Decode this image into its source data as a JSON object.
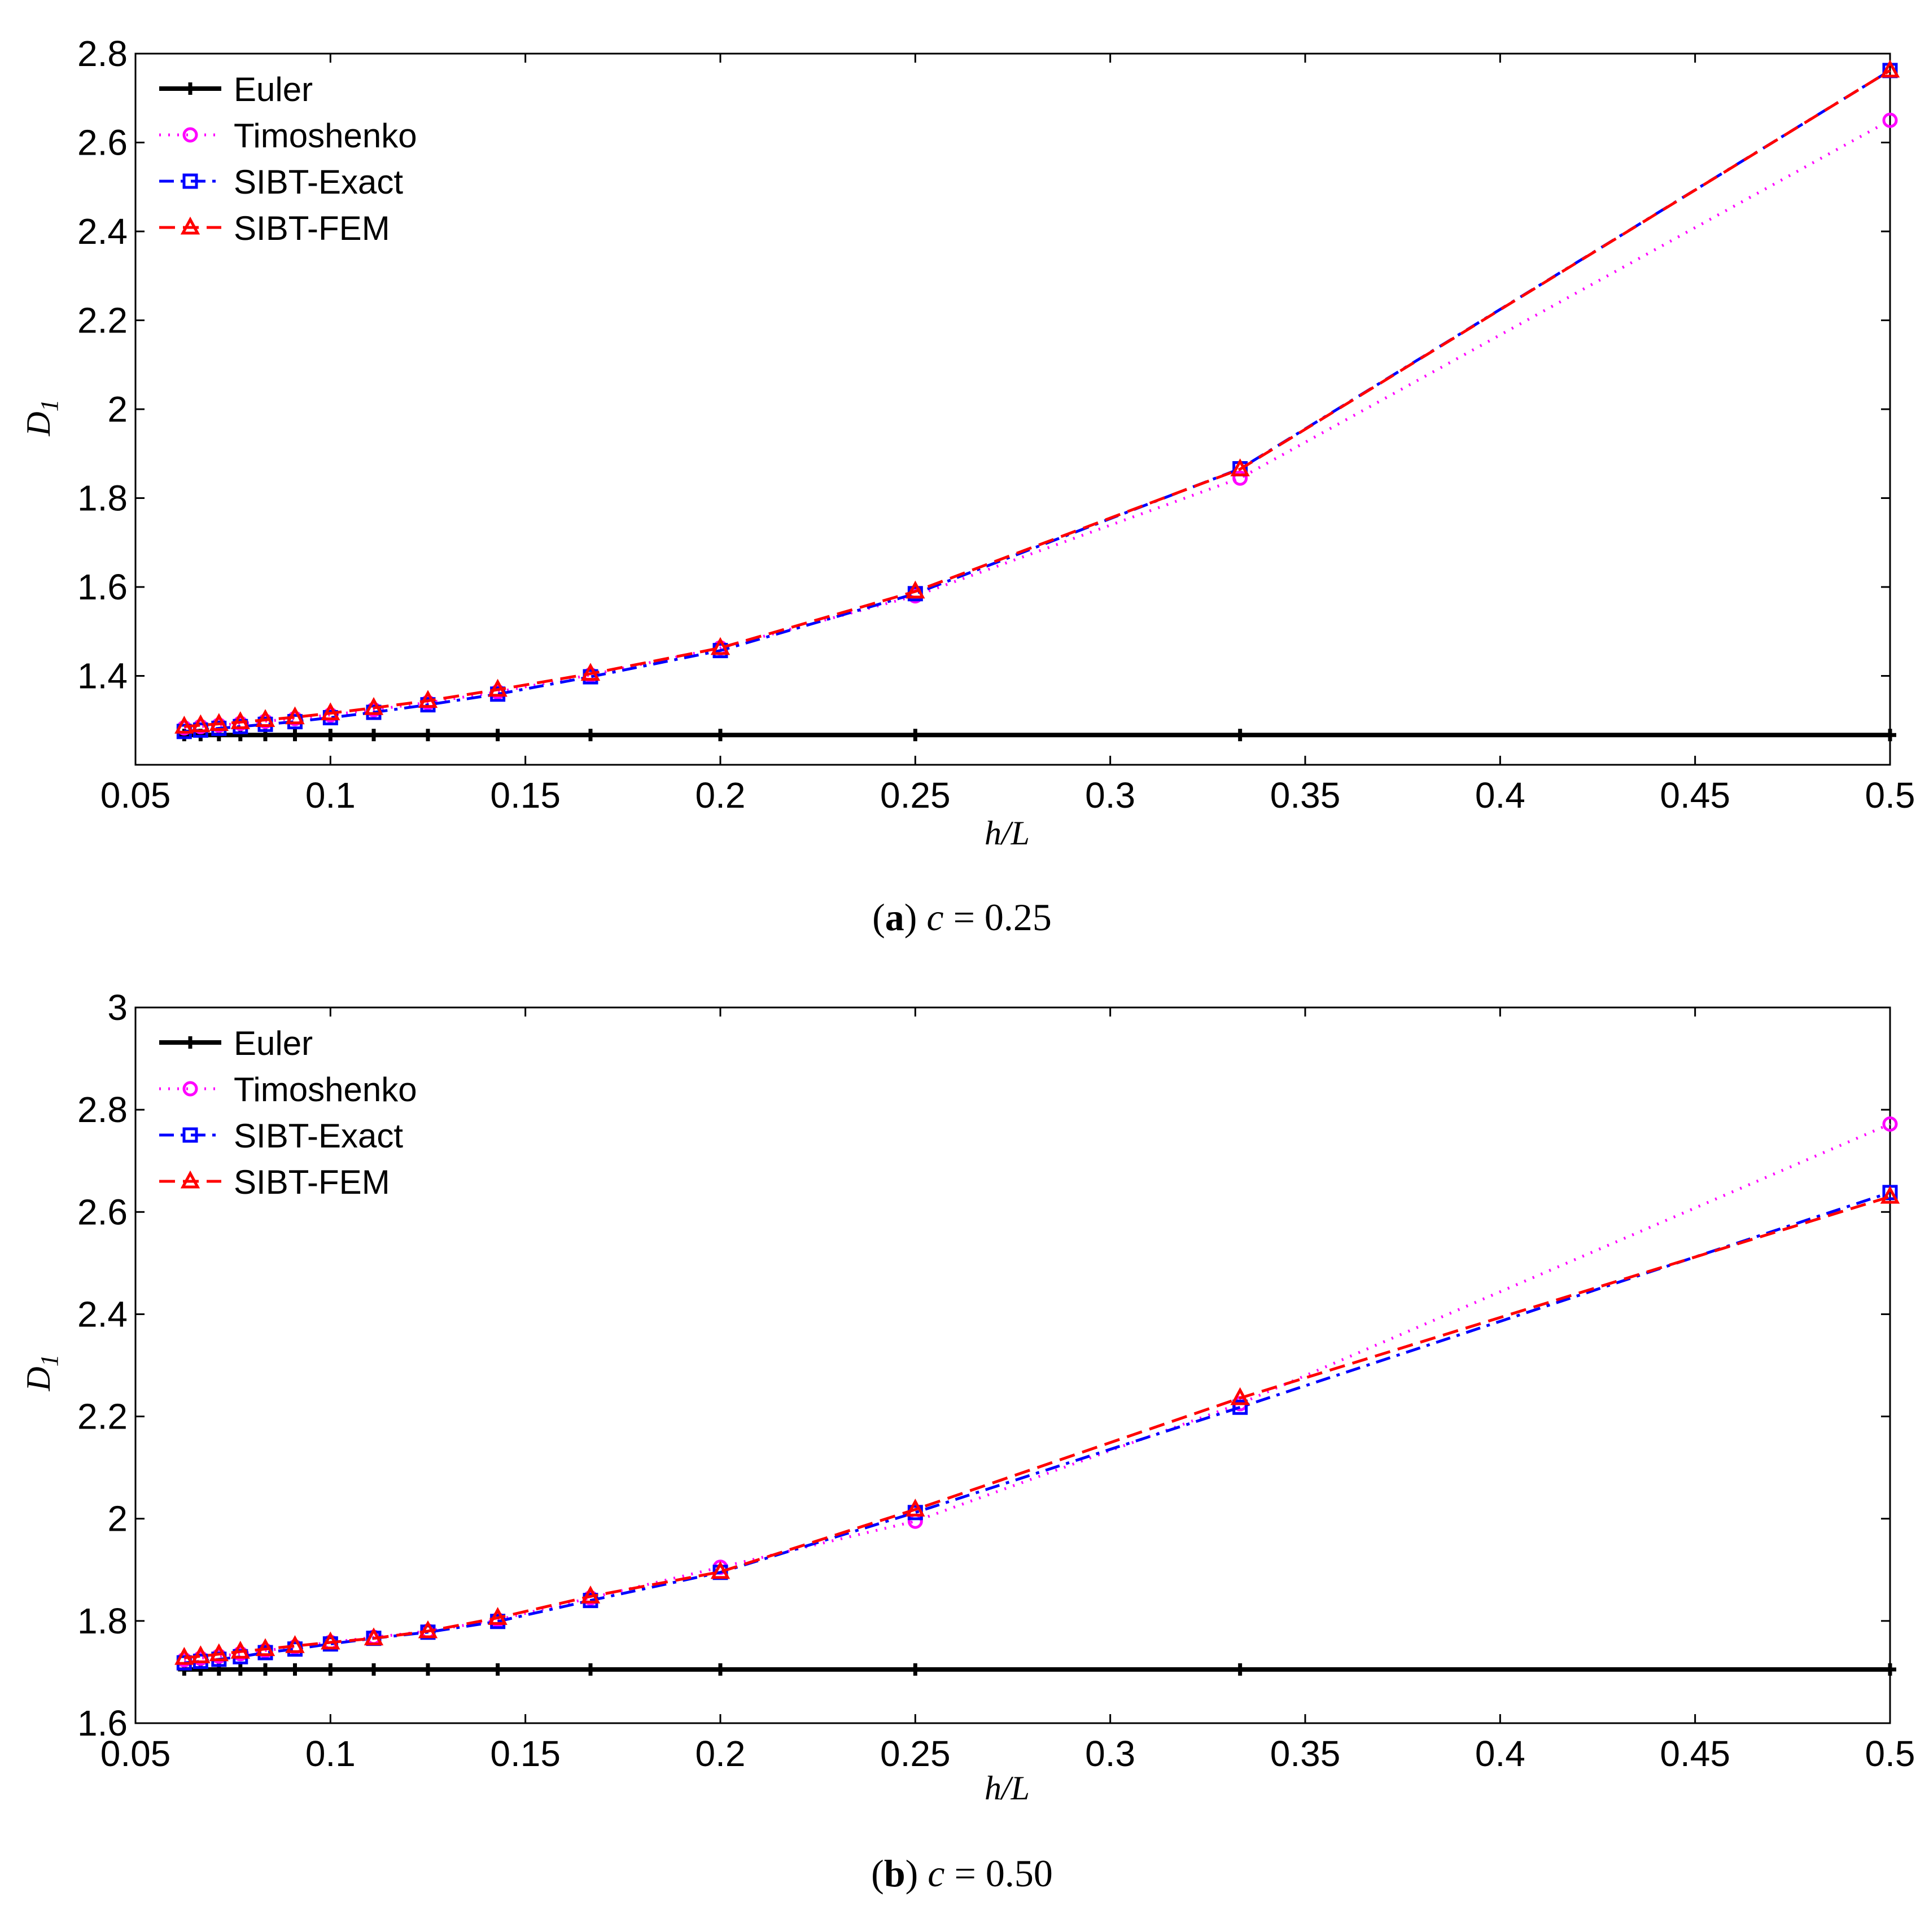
{
  "chart_data": [
    {
      "type": "line",
      "panel": "a",
      "caption": {
        "letter": "a",
        "variable": "c",
        "rest": " = 0.25"
      },
      "xlabel": "h/L",
      "ylabel": {
        "main": "D",
        "sub": "1"
      },
      "xlim": [
        0.05,
        0.5
      ],
      "ylim": [
        1.2,
        2.8
      ],
      "xticks": [
        "0.05",
        "0.1",
        "0.15",
        "0.2",
        "0.25",
        "0.3",
        "0.35",
        "0.4",
        "0.45",
        "0.5"
      ],
      "yticks": [
        "1.4",
        "1.6",
        "1.8",
        "2",
        "2.2",
        "2.4",
        "2.6",
        "2.8"
      ],
      "ytick_values": [
        1.4,
        1.6,
        1.8,
        2.0,
        2.2,
        2.4,
        2.6,
        2.8
      ],
      "legend_position": "top-left",
      "x": [
        0.0625,
        0.0667,
        0.0714,
        0.0769,
        0.0833,
        0.0909,
        0.1,
        0.1111,
        0.125,
        0.1429,
        0.1667,
        0.2,
        0.25,
        0.3333,
        0.5
      ],
      "series": [
        {
          "name": "Euler",
          "color": "#000000",
          "marker": "plus",
          "dash": "solid",
          "values": [
            1.267,
            1.267,
            1.267,
            1.267,
            1.267,
            1.267,
            1.267,
            1.267,
            1.267,
            1.267,
            1.267,
            1.267,
            1.267,
            1.267,
            1.267
          ]
        },
        {
          "name": "Timoshenko",
          "color": "#ff00ff",
          "marker": "circle",
          "dash": "dotted",
          "values": [
            1.283,
            1.286,
            1.289,
            1.293,
            1.298,
            1.304,
            1.312,
            1.324,
            1.34,
            1.364,
            1.402,
            1.463,
            1.58,
            1.845,
            2.65
          ]
        },
        {
          "name": "SIBT-Exact",
          "color": "#0000ff",
          "marker": "square",
          "dash": "dashdot",
          "values": [
            1.275,
            1.278,
            1.282,
            1.286,
            1.291,
            1.297,
            1.306,
            1.318,
            1.335,
            1.359,
            1.398,
            1.457,
            1.585,
            1.866,
            2.762
          ]
        },
        {
          "name": "SIBT-FEM",
          "color": "#ff0000",
          "marker": "triangle",
          "dash": "dashed",
          "values": [
            1.286,
            1.289,
            1.292,
            1.296,
            1.301,
            1.307,
            1.316,
            1.328,
            1.344,
            1.369,
            1.405,
            1.463,
            1.59,
            1.865,
            2.762
          ]
        }
      ]
    },
    {
      "type": "line",
      "panel": "b",
      "caption": {
        "letter": "b",
        "variable": "c",
        "rest": " = 0.50"
      },
      "xlabel": "h/L",
      "ylabel": {
        "main": "D",
        "sub": "1"
      },
      "xlim": [
        0.05,
        0.5
      ],
      "ylim": [
        1.6,
        3.0
      ],
      "xticks": [
        "0.05",
        "0.1",
        "0.15",
        "0.2",
        "0.25",
        "0.3",
        "0.35",
        "0.4",
        "0.45",
        "0.5"
      ],
      "yticks": [
        "1.6",
        "1.8",
        "2",
        "2.2",
        "2.4",
        "2.6",
        "2.8",
        "3"
      ],
      "ytick_values": [
        1.6,
        1.8,
        2.0,
        2.2,
        2.4,
        2.6,
        2.8,
        3.0
      ],
      "legend_position": "top-left",
      "x": [
        0.0625,
        0.0667,
        0.0714,
        0.0769,
        0.0833,
        0.0909,
        0.1,
        0.1111,
        0.125,
        0.1429,
        0.1667,
        0.2,
        0.25,
        0.3333,
        0.5
      ],
      "series": [
        {
          "name": "Euler",
          "color": "#000000",
          "marker": "plus",
          "dash": "solid",
          "values": [
            1.705,
            1.705,
            1.705,
            1.705,
            1.705,
            1.705,
            1.705,
            1.705,
            1.705,
            1.705,
            1.705,
            1.705,
            1.705,
            1.705,
            1.705
          ]
        },
        {
          "name": "Timoshenko",
          "color": "#ff00ff",
          "marker": "circle",
          "dash": "dotted",
          "values": [
            1.724,
            1.727,
            1.731,
            1.736,
            1.742,
            1.749,
            1.758,
            1.768,
            1.78,
            1.802,
            1.845,
            1.905,
            1.995,
            2.225,
            2.772
          ]
        },
        {
          "name": "SIBT-Exact",
          "color": "#0000ff",
          "marker": "square",
          "dash": "dashdot",
          "values": [
            1.718,
            1.721,
            1.725,
            1.73,
            1.738,
            1.745,
            1.755,
            1.766,
            1.778,
            1.799,
            1.84,
            1.895,
            2.012,
            2.218,
            2.638
          ]
        },
        {
          "name": "SIBT-FEM",
          "color": "#ff0000",
          "marker": "triangle",
          "dash": "dashed",
          "values": [
            1.728,
            1.731,
            1.735,
            1.74,
            1.745,
            1.751,
            1.758,
            1.766,
            1.78,
            1.806,
            1.848,
            1.896,
            2.018,
            2.236,
            2.63
          ]
        }
      ]
    }
  ]
}
